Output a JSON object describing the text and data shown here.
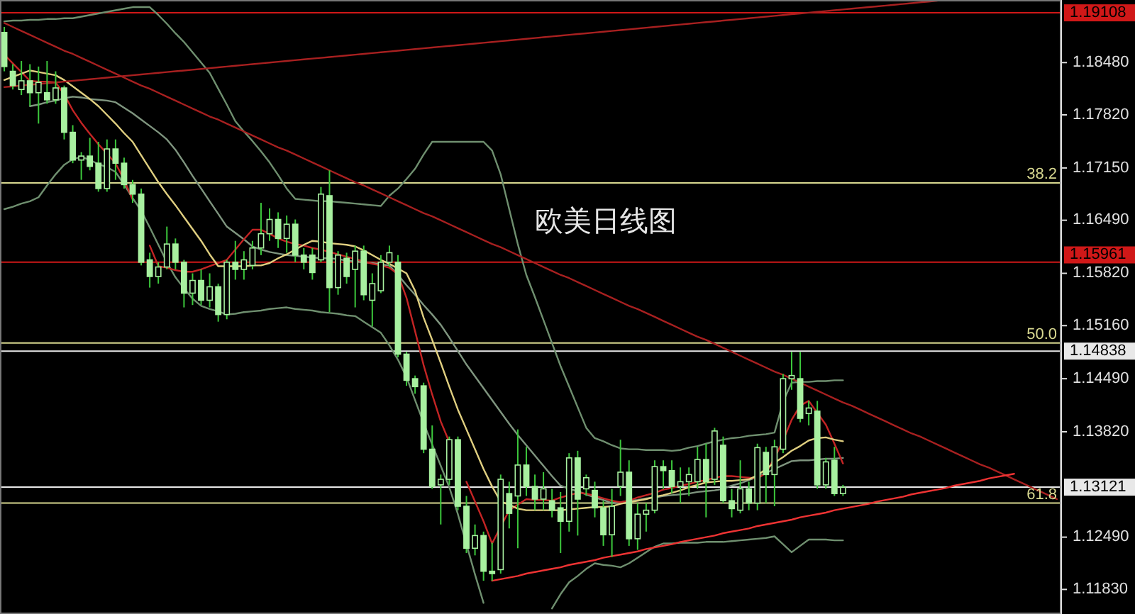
{
  "chart_data": {
    "type": "candlestick",
    "title": "欧美日线图",
    "color": "#a8f0a0",
    "categories": [
      null,
      null,
      null,
      null,
      null,
      null,
      null,
      null,
      null,
      null,
      null,
      null,
      null,
      null,
      null,
      null,
      null,
      null,
      null,
      null,
      null,
      null,
      null,
      null,
      null,
      null,
      null,
      null,
      null,
      null,
      null,
      null,
      null,
      null,
      null,
      null,
      null,
      null,
      null,
      null,
      null,
      null,
      null,
      null,
      null,
      null,
      null,
      null,
      null,
      null,
      null,
      null,
      null,
      null,
      null,
      null,
      null,
      null,
      null,
      null,
      null,
      null,
      null,
      null,
      null,
      null,
      null,
      null,
      null,
      null,
      null,
      null,
      null,
      null,
      null,
      null,
      null,
      null,
      null,
      null,
      null,
      null,
      null,
      null,
      null,
      null,
      null,
      null,
      null,
      null,
      null,
      null,
      null,
      null,
      null,
      null,
      null,
      null,
      null,
      null,
      null,
      null,
      null,
      null,
      null,
      null,
      null,
      null,
      null,
      null,
      null,
      null,
      null,
      null,
      null,
      null,
      null,
      null,
      null,
      null,
      null,
      null,
      null,
      null
    ],
    "ohlc": [
      [
        1.1886,
        1.1893,
        1.1837,
        1.1843
      ],
      [
        1.1837,
        1.1846,
        1.1814,
        1.1819
      ],
      [
        1.1814,
        1.185,
        1.1807,
        1.1825
      ],
      [
        1.1825,
        1.1846,
        1.1793,
        1.181
      ],
      [
        1.181,
        1.1843,
        1.1771,
        1.1823
      ],
      [
        1.181,
        1.185,
        1.1796,
        1.1801
      ],
      [
        1.1801,
        1.1837,
        1.1796,
        1.1816
      ],
      [
        1.1816,
        1.1819,
        1.1751,
        1.176
      ],
      [
        1.176,
        1.1769,
        1.1721,
        1.1725
      ],
      [
        1.1725,
        1.1735,
        1.17,
        1.173
      ],
      [
        1.173,
        1.1753,
        1.1712,
        1.1717
      ],
      [
        1.1721,
        1.1748,
        1.1685,
        1.1689
      ],
      [
        1.1689,
        1.1751,
        1.1685,
        1.1739
      ],
      [
        1.1739,
        1.1751,
        1.17,
        1.1721
      ],
      [
        1.1721,
        1.1728,
        1.1689,
        1.1694
      ],
      [
        1.1694,
        1.17,
        1.1671,
        1.1682
      ],
      [
        1.1682,
        1.1689,
        1.1592,
        1.1596
      ],
      [
        1.1599,
        1.1608,
        1.1564,
        1.1578
      ],
      [
        1.1578,
        1.1596,
        1.1569,
        1.159
      ],
      [
        1.159,
        1.1641,
        1.1587,
        1.1619
      ],
      [
        1.1619,
        1.1626,
        1.1587,
        1.1596
      ],
      [
        1.1596,
        1.1599,
        1.1539,
        1.1557
      ],
      [
        1.1557,
        1.1582,
        1.1542,
        1.1573
      ],
      [
        1.1573,
        1.1587,
        1.1542,
        1.1548
      ],
      [
        1.1548,
        1.1582,
        1.1539,
        1.1565
      ],
      [
        1.1565,
        1.1569,
        1.1521,
        1.153
      ],
      [
        1.153,
        1.1599,
        1.1524,
        1.1596
      ],
      [
        1.1596,
        1.1623,
        1.1574,
        1.1587
      ],
      [
        1.1587,
        1.161,
        1.1574,
        1.1599
      ],
      [
        1.1592,
        1.1623,
        1.1587,
        1.1614
      ],
      [
        1.1614,
        1.1671,
        1.1605,
        1.1632
      ],
      [
        1.1632,
        1.1664,
        1.1623,
        1.165
      ],
      [
        1.165,
        1.1659,
        1.1614,
        1.1626
      ],
      [
        1.1626,
        1.1655,
        1.1608,
        1.1644
      ],
      [
        1.1644,
        1.165,
        1.1596,
        1.1605
      ],
      [
        1.1605,
        1.1614,
        1.1587,
        1.1596
      ],
      [
        1.1605,
        1.1614,
        1.1574,
        1.1583
      ],
      [
        1.1599,
        1.1691,
        1.1596,
        1.1682
      ],
      [
        1.168,
        1.1712,
        1.1533,
        1.1564
      ],
      [
        1.1564,
        1.161,
        1.1555,
        1.1605
      ],
      [
        1.1601,
        1.1608,
        1.1569,
        1.1578
      ],
      [
        1.1587,
        1.1617,
        1.1539,
        1.161
      ],
      [
        1.161,
        1.1617,
        1.1548,
        1.1555
      ],
      [
        1.1548,
        1.1582,
        1.1515,
        1.1569
      ],
      [
        1.156,
        1.1605,
        1.1557,
        1.1596
      ],
      [
        1.1596,
        1.1617,
        1.159,
        1.1608
      ],
      [
        1.1596,
        1.1605,
        1.1476,
        1.148
      ],
      [
        1.148,
        1.1483,
        1.144,
        1.1447
      ],
      [
        1.1449,
        1.1453,
        1.143,
        1.1439
      ],
      [
        1.144,
        1.1444,
        1.1355,
        1.136
      ],
      [
        1.136,
        1.139,
        1.131,
        1.1313
      ],
      [
        1.1315,
        1.1328,
        1.1265,
        1.1322
      ],
      [
        1.1322,
        1.1376,
        1.1315,
        1.1372
      ],
      [
        1.1372,
        1.1376,
        1.1283,
        1.1288
      ],
      [
        1.1288,
        1.1301,
        1.1229,
        1.1235
      ],
      [
        1.1235,
        1.1265,
        1.1226,
        1.1251
      ],
      [
        1.1251,
        1.1256,
        1.1194,
        1.1206
      ],
      [
        1.1206,
        1.1242,
        1.1194,
        1.1203
      ],
      [
        1.1208,
        1.1328,
        1.1203,
        1.1322
      ],
      [
        1.1304,
        1.1319,
        1.126,
        1.1279
      ],
      [
        1.1301,
        1.1385,
        1.1235,
        1.134
      ],
      [
        1.134,
        1.1363,
        1.1301,
        1.1313
      ],
      [
        1.1313,
        1.1328,
        1.1283,
        1.1297
      ],
      [
        1.1297,
        1.1331,
        1.1283,
        1.131
      ],
      [
        1.1295,
        1.131,
        1.1274,
        1.1283
      ],
      [
        1.1286,
        1.1306,
        1.1229,
        1.1269
      ],
      [
        1.1269,
        1.1355,
        1.1256,
        1.1349
      ],
      [
        1.1349,
        1.1358,
        1.1251,
        1.1297
      ],
      [
        1.131,
        1.1328,
        1.1301,
        1.1324
      ],
      [
        1.1308,
        1.1319,
        1.1274,
        1.1286
      ],
      [
        1.1286,
        1.1295,
        1.1238,
        1.1252
      ],
      [
        1.1252,
        1.131,
        1.1224,
        1.1288
      ],
      [
        1.1313,
        1.1372,
        1.1301,
        1.1331
      ],
      [
        1.1331,
        1.1346,
        1.1238,
        1.1247
      ],
      [
        1.1247,
        1.1292,
        1.1233,
        1.1278
      ],
      [
        1.1278,
        1.1292,
        1.1256,
        1.1283
      ],
      [
        1.1283,
        1.1346,
        1.1279,
        1.1338
      ],
      [
        1.1338,
        1.1346,
        1.131,
        1.1333
      ],
      [
        1.1333,
        1.1346,
        1.1304,
        1.1313
      ],
      [
        1.1313,
        1.1337,
        1.1292,
        1.1319
      ],
      [
        1.1319,
        1.1337,
        1.1301,
        1.1328
      ],
      [
        1.1319,
        1.1363,
        1.131,
        1.1347
      ],
      [
        1.1347,
        1.1367,
        1.1274,
        1.1319
      ],
      [
        1.1322,
        1.1387,
        1.1315,
        1.1383
      ],
      [
        1.1365,
        1.1376,
        1.1292,
        1.1295
      ],
      [
        1.1295,
        1.131,
        1.1274,
        1.1285
      ],
      [
        1.1283,
        1.1346,
        1.1279,
        1.131
      ],
      [
        1.131,
        1.1319,
        1.1283,
        1.1292
      ],
      [
        1.1292,
        1.1367,
        1.1283,
        1.1362
      ],
      [
        1.1356,
        1.1363,
        1.1292,
        1.1328
      ],
      [
        1.1328,
        1.1372,
        1.1288,
        1.1363
      ],
      [
        1.136,
        1.1455,
        1.1355,
        1.1449
      ],
      [
        1.1449,
        1.1483,
        1.1435,
        1.1453
      ],
      [
        1.1449,
        1.1483,
        1.1394,
        1.1399
      ],
      [
        1.1405,
        1.1421,
        1.139,
        1.1412
      ],
      [
        1.1408,
        1.1421,
        1.131,
        1.1315
      ],
      [
        1.1315,
        1.1349,
        1.131,
        1.1344
      ],
      [
        1.1346,
        1.1363,
        1.1301,
        1.1304
      ],
      [
        1.1304,
        1.1315,
        1.1301,
        1.1312
      ],
      null,
      null,
      null,
      null,
      null,
      null,
      null,
      null,
      null,
      null,
      null,
      null,
      null,
      null,
      null,
      null,
      null,
      null,
      null,
      null,
      null,
      null,
      null,
      null,
      null
    ],
    "series": [
      {
        "type": "line",
        "color": "#6f8f6f",
        "values": [
          1.19,
          1.1901,
          1.1901,
          1.1902,
          1.1902,
          1.1903,
          1.1903,
          1.1904,
          1.1904,
          1.1906,
          1.1908,
          1.191,
          1.1912,
          1.1914,
          1.1916,
          1.1918,
          1.1918,
          1.1918,
          1.1908,
          1.1897,
          1.1885,
          1.1874,
          1.1861,
          1.1848,
          1.1835,
          1.1815,
          1.1795,
          1.1774,
          1.1761,
          1.1749,
          1.1736,
          1.1722,
          1.1706,
          1.1689,
          1.1676,
          1.1675,
          1.1674,
          1.1673,
          1.1673,
          1.1672,
          1.1671,
          1.167,
          1.1669,
          1.1668,
          1.1667,
          1.168,
          1.1689,
          1.1701,
          1.1714,
          1.1732,
          1.1748,
          1.1748,
          1.1748,
          1.1748,
          1.1748,
          1.1748,
          1.1748,
          1.1737,
          1.1707,
          1.1663,
          1.1619,
          1.158,
          1.1552,
          1.1523,
          1.1494,
          1.1465,
          1.1439,
          1.1413,
          1.1387,
          1.1374,
          1.137,
          1.1365,
          1.1361,
          1.136,
          1.136,
          1.1359,
          1.1359,
          1.1359,
          1.1358,
          1.1359,
          1.1362,
          1.1364,
          1.1367,
          1.137,
          1.1372,
          1.1374,
          1.1375,
          1.1377,
          1.1378,
          1.1379,
          1.1381,
          1.142,
          1.1444,
          1.1445,
          1.1445,
          1.1446,
          1.1446,
          1.1447,
          1.1447,
          null,
          null,
          null,
          null,
          null,
          null,
          null,
          null,
          null,
          null,
          null,
          null,
          null,
          null,
          null,
          null,
          null,
          null,
          null,
          null,
          null,
          null,
          null,
          null,
          null
        ]
      },
      {
        "type": "line",
        "color": "#7f957f",
        "values": [
          null,
          null,
          null,
          1.1793,
          1.1795,
          1.1798,
          1.18,
          1.1803,
          1.1805,
          1.1804,
          1.1802,
          1.1801,
          1.18,
          1.1798,
          1.1791,
          1.1784,
          1.1776,
          1.1768,
          1.176,
          1.1751,
          1.1738,
          1.1722,
          1.1705,
          1.1689,
          1.1673,
          1.1657,
          1.1641,
          1.1633,
          1.1625,
          1.1616,
          1.1612,
          1.1609,
          1.1607,
          1.1605,
          1.1604,
          1.1603,
          1.1602,
          1.1601,
          1.1601,
          1.16,
          1.1598,
          1.1597,
          1.1596,
          1.1595,
          1.1593,
          1.1592,
          1.158,
          1.1567,
          1.1555,
          1.1542,
          1.153,
          1.1517,
          1.1501,
          1.1484,
          1.1467,
          1.1452,
          1.1437,
          1.1422,
          1.1407,
          1.1392,
          1.1378,
          1.1365,
          1.1352,
          1.1339,
          1.1326,
          1.1314,
          1.131,
          1.1307,
          1.1303,
          1.1299,
          1.1296,
          1.1292,
          1.1293,
          1.1295,
          1.1296,
          1.1298,
          1.1299,
          1.1301,
          1.1302,
          1.1303,
          1.1304,
          1.1306,
          1.1307,
          1.1308,
          1.131,
          1.1314,
          1.1317,
          1.1321,
          1.1325,
          1.133,
          1.1335,
          1.134,
          1.1345,
          1.1346,
          1.1346,
          1.1347,
          1.1348,
          1.1348,
          1.1349,
          null,
          null,
          null,
          null,
          null,
          null,
          null,
          null,
          null,
          null,
          null,
          null,
          null,
          null,
          null,
          null,
          null,
          null,
          null,
          null,
          null,
          null,
          null,
          null,
          null
        ]
      },
      {
        "type": "line",
        "color": "#6f8f6f",
        "values": [
          1.1663,
          1.1666,
          1.167,
          1.1673,
          1.1678,
          1.1693,
          1.1707,
          1.1719,
          1.1726,
          1.1729,
          1.1725,
          1.172,
          1.1716,
          1.171,
          1.1694,
          1.1677,
          1.1661,
          1.164,
          1.1618,
          1.1596,
          1.1577,
          1.1563,
          1.155,
          1.1541,
          1.1537,
          1.1534,
          1.153,
          1.1531,
          1.1533,
          1.1534,
          1.1535,
          1.1537,
          1.1538,
          1.1539,
          1.1537,
          1.1536,
          1.1535,
          1.1533,
          1.1532,
          1.1531,
          1.1529,
          1.1528,
          1.1521,
          1.1514,
          1.1507,
          1.1491,
          1.1473,
          1.1451,
          1.1422,
          1.1393,
          1.1366,
          1.1339,
          1.1312,
          1.1278,
          1.124,
          1.1202,
          1.1166,
          null,
          null,
          null,
          null,
          null,
          null,
          null,
          1.1159,
          1.1177,
          1.1192,
          1.12,
          1.1209,
          1.1216,
          1.1214,
          1.1213,
          1.1211,
          1.1216,
          1.1223,
          1.123,
          1.1237,
          1.1241,
          1.1241,
          1.1242,
          1.1242,
          1.1242,
          1.1243,
          1.1243,
          1.1243,
          1.1244,
          1.1245,
          1.1246,
          1.1247,
          1.1248,
          1.125,
          1.124,
          1.123,
          1.1238,
          1.1246,
          1.1246,
          1.1246,
          1.1245,
          1.1245,
          null,
          null,
          null,
          null,
          null,
          null,
          null,
          null,
          null,
          null,
          null,
          null,
          null,
          null,
          null,
          null,
          null,
          null,
          null,
          null,
          null,
          null,
          null,
          null,
          null
        ]
      },
      {
        "type": "line",
        "color": "#c42424",
        "values": [
          1.1858,
          1.1847,
          1.1836,
          1.1825,
          1.1824,
          1.1824,
          1.1823,
          1.1808,
          1.1788,
          1.1772,
          1.1758,
          1.1745,
          1.1733,
          1.1721,
          1.17,
          1.1675,
          null,
          1.1617,
          1.1591,
          1.1589,
          1.1586,
          1.1584,
          1.1584,
          1.1587,
          1.1591,
          1.1595,
          1.1599,
          1.1612,
          1.1625,
          1.1637,
          1.1637,
          1.1632,
          1.1626,
          1.1622,
          1.1619,
          1.1617,
          1.1614,
          1.1612,
          1.1609,
          1.1606,
          1.1603,
          1.16,
          1.1597,
          1.1594,
          1.1592,
          1.1589,
          1.1581,
          1.1551,
          1.1509,
          1.1466,
          1.1429,
          1.1395,
          1.1369,
          null,
          1.1319,
          1.1294,
          1.1269,
          1.1241,
          1.1262,
          1.1283,
          1.129,
          1.1297,
          1.1296,
          1.1296,
          1.1295,
          1.1299,
          1.1302,
          1.1305,
          1.1304,
          1.1301,
          1.1298,
          1.1295,
          1.1293,
          1.1295,
          1.1299,
          1.1302,
          1.1305,
          1.1309,
          1.1311,
          1.1314,
          1.1316,
          1.1319,
          1.1321,
          1.1324,
          1.1326,
          1.1326,
          1.1325,
          1.1324,
          1.1323,
          1.133,
          1.1349,
          1.1371,
          1.1397,
          1.1415,
          1.1421,
          1.1406,
          1.1391,
          1.1367,
          1.1342,
          null,
          null,
          null,
          null,
          null,
          null,
          null,
          null,
          null,
          null,
          null,
          null,
          null,
          null,
          null,
          null,
          null,
          null,
          null,
          null,
          null,
          null,
          null,
          null,
          null
        ]
      },
      {
        "type": "line",
        "color": "#e0cf80",
        "values": [
          1.1826,
          1.183,
          1.1834,
          1.1838,
          1.1836,
          1.1834,
          1.1832,
          1.1826,
          1.1818,
          1.181,
          1.1802,
          1.1793,
          1.1782,
          1.1771,
          1.1759,
          1.1748,
          1.1731,
          1.1714,
          1.1697,
          1.1682,
          1.1668,
          1.1653,
          1.1638,
          1.1623,
          1.1606,
          1.1591,
          1.1591,
          1.1591,
          1.1591,
          1.1592,
          1.1592,
          1.1595,
          1.1601,
          1.1606,
          1.1612,
          1.1618,
          1.1623,
          1.1622,
          1.162,
          1.1619,
          1.1618,
          1.1616,
          1.1611,
          1.1605,
          1.1599,
          1.1594,
          1.1588,
          1.1582,
          1.156,
          1.1526,
          1.1498,
          1.1469,
          1.1439,
          1.141,
          1.1385,
          1.136,
          1.1335,
          1.1313,
          1.1294,
          1.129,
          1.1285,
          1.1283,
          1.1283,
          1.1283,
          1.1283,
          1.1283,
          1.1284,
          1.1285,
          1.1286,
          1.1287,
          1.1287,
          1.1288,
          1.1291,
          1.1293,
          1.1295,
          1.1297,
          1.13,
          1.1302,
          1.1305,
          1.1308,
          1.1312,
          1.1315,
          1.1318,
          1.1319,
          1.132,
          1.132,
          1.1321,
          1.1322,
          1.1327,
          1.1335,
          1.1343,
          1.135,
          1.1358,
          1.1364,
          1.1371,
          1.1374,
          1.1375,
          1.1372,
          1.137,
          null,
          null,
          null,
          null,
          null,
          null,
          null,
          null,
          null,
          null,
          null,
          null,
          null,
          null,
          null,
          null,
          null,
          null,
          null,
          null,
          null,
          null,
          null,
          null,
          null
        ]
      },
      {
        "type": "line",
        "color": "#a82020",
        "values": [
          1.1898,
          1.1893,
          1.1888,
          1.1883,
          1.1878,
          1.1873,
          1.1868,
          1.1863,
          1.1859,
          1.1854,
          1.1849,
          1.1844,
          1.1839,
          1.1834,
          1.1829,
          1.1824,
          1.1819,
          1.1815,
          1.181,
          1.1805,
          1.18,
          1.1795,
          1.179,
          1.1785,
          1.178,
          1.1776,
          1.1771,
          1.1766,
          1.1761,
          1.1756,
          1.1751,
          1.1746,
          1.1741,
          1.1737,
          1.1732,
          1.1727,
          1.1722,
          1.1717,
          1.1712,
          1.1707,
          1.1702,
          1.1697,
          1.1693,
          1.1688,
          1.1683,
          1.1678,
          1.1673,
          1.1668,
          1.1663,
          1.1658,
          1.1654,
          1.1649,
          1.1644,
          1.1639,
          1.1634,
          1.1629,
          1.1624,
          1.1619,
          1.1615,
          1.161,
          1.1605,
          1.16,
          1.1595,
          1.159,
          1.1585,
          1.158,
          1.1576,
          1.1571,
          1.1566,
          1.1561,
          1.1556,
          1.1551,
          1.1546,
          1.1541,
          1.1537,
          1.1532,
          1.1527,
          1.1522,
          1.1517,
          1.1512,
          1.1507,
          1.1502,
          1.1498,
          1.1493,
          1.1488,
          1.1483,
          1.1478,
          1.1473,
          1.1468,
          1.1463,
          1.1458,
          1.1454,
          1.1449,
          1.1444,
          1.1439,
          1.1434,
          1.1429,
          1.1424,
          1.1419,
          1.1415,
          1.141,
          1.1405,
          1.14,
          1.1395,
          1.139,
          1.1385,
          1.138,
          1.1376,
          1.1371,
          1.1366,
          1.1361,
          1.1356,
          1.1351,
          1.1346,
          1.1341,
          1.1337,
          1.1332,
          1.1327,
          1.1322,
          1.1317,
          1.1312,
          1.1307,
          1.1302,
          1.1297
        ]
      },
      {
        "type": "line",
        "color": "#a82020",
        "values": [
          1.1817,
          1.1818,
          1.1819,
          1.182,
          1.1821,
          1.1822,
          1.1823,
          1.1824,
          1.1825,
          1.1826,
          1.1827,
          1.1828,
          1.1829,
          1.183,
          1.1831,
          1.1832,
          1.1833,
          1.1834,
          1.1835,
          1.1836,
          1.1837,
          1.1838,
          1.1839,
          1.184,
          1.1841,
          1.1842,
          1.1843,
          1.1844,
          1.1845,
          1.1846,
          1.1847,
          1.1848,
          1.1849,
          1.185,
          1.1851,
          1.1852,
          1.1853,
          1.1854,
          1.1855,
          1.1856,
          1.1857,
          1.1858,
          1.1859,
          1.186,
          1.1861,
          1.1862,
          1.1863,
          1.1864,
          1.1865,
          1.1866,
          1.1867,
          1.1868,
          1.1869,
          1.187,
          1.1871,
          1.1872,
          1.1873,
          1.1874,
          1.1875,
          1.1876,
          1.1877,
          1.1878,
          1.1879,
          1.188,
          1.1881,
          1.1882,
          1.1883,
          1.1884,
          1.1885,
          1.1886,
          1.1887,
          1.1888,
          1.1889,
          1.189,
          1.1891,
          1.1892,
          1.1893,
          1.1894,
          1.1895,
          1.1896,
          1.1897,
          1.1898,
          1.1899,
          1.19,
          1.1901,
          1.1902,
          1.1903,
          1.1904,
          1.1905,
          1.1906,
          1.1907,
          1.1908,
          1.1909,
          1.191,
          1.1911,
          1.1912,
          1.1913,
          1.1914,
          1.1915,
          1.1916,
          1.1917,
          1.1918,
          1.1919,
          1.192,
          1.1921,
          1.1922,
          1.1923,
          1.1924,
          1.1925,
          1.1926,
          null,
          null,
          null,
          null,
          null,
          null,
          null,
          null,
          null,
          null,
          null,
          null,
          null,
          null
        ]
      },
      {
        "type": "line",
        "color": "#ee3333",
        "values": [
          null,
          null,
          null,
          null,
          null,
          null,
          null,
          null,
          null,
          null,
          null,
          null,
          null,
          null,
          null,
          null,
          null,
          null,
          null,
          null,
          null,
          null,
          null,
          null,
          null,
          null,
          null,
          null,
          null,
          null,
          null,
          null,
          null,
          null,
          null,
          null,
          null,
          null,
          null,
          null,
          null,
          null,
          null,
          null,
          null,
          null,
          null,
          null,
          null,
          null,
          null,
          null,
          null,
          null,
          null,
          null,
          null,
          1.1194,
          1.1196,
          1.1198,
          1.12,
          1.1203,
          1.1205,
          1.1207,
          1.1209,
          1.1211,
          1.1214,
          1.1216,
          1.1218,
          1.122,
          1.1223,
          1.1225,
          1.1227,
          1.1229,
          1.1231,
          1.1234,
          1.1236,
          1.1238,
          1.124,
          1.1243,
          1.1245,
          1.1247,
          1.1249,
          1.1251,
          1.1254,
          1.1256,
          1.1258,
          1.126,
          1.1263,
          1.1265,
          1.1267,
          1.1269,
          1.1271,
          1.1274,
          1.1276,
          1.1278,
          1.128,
          1.1283,
          1.1285,
          1.1287,
          1.1289,
          1.1291,
          1.1294,
          1.1296,
          1.1298,
          1.13,
          1.1303,
          1.1305,
          1.1307,
          1.1309,
          1.1311,
          1.1314,
          1.1316,
          1.1318,
          1.132,
          1.1323,
          1.1325,
          1.1327,
          1.1329,
          null,
          null,
          null,
          null,
          null
        ]
      }
    ],
    "ylim": [
      1.1152,
      1.1927
    ],
    "yticks": [
      {
        "value": 1.1848,
        "label": "1.18480"
      },
      {
        "value": 1.1782,
        "label": "1.17820"
      },
      {
        "value": 1.1715,
        "label": "1.17150"
      },
      {
        "value": 1.1649,
        "label": "1.16490"
      },
      {
        "value": 1.1582,
        "label": "1.15820"
      },
      {
        "value": 1.1516,
        "label": "1.15160"
      },
      {
        "value": 1.1449,
        "label": "1.14490"
      },
      {
        "value": 1.1382,
        "label": "1.13820"
      },
      {
        "value": 1.1249,
        "label": "1.12490"
      },
      {
        "value": 1.1183,
        "label": "1.11830"
      }
    ],
    "tick_labels": "y",
    "grid": false,
    "ref_lines": [
      {
        "axis": "y",
        "value": 1.19108,
        "label": "1.19108",
        "color": "#d01818"
      },
      {
        "axis": "y",
        "value": 1.1696,
        "color": "#d8d890"
      },
      {
        "axis": "y",
        "value": 1.15961,
        "label": "1.15961",
        "color": "#d01818"
      },
      {
        "axis": "y",
        "value": 1.1494,
        "color": "#d8d890"
      },
      {
        "axis": "y",
        "value": 1.14838,
        "label": "1.14838",
        "color": "#e8e8e8"
      },
      {
        "axis": "y",
        "value": 1.13121,
        "label": "1.13121",
        "color": "#e8e8e8"
      },
      {
        "axis": "y",
        "value": 1.1292,
        "color": "#d8d890"
      }
    ],
    "annotations": [
      {
        "text": "38.2",
        "y": 1.1696
      },
      {
        "text": "50.0",
        "y": 1.1494
      },
      {
        "text": "61.8",
        "y": 1.1292
      }
    ]
  }
}
